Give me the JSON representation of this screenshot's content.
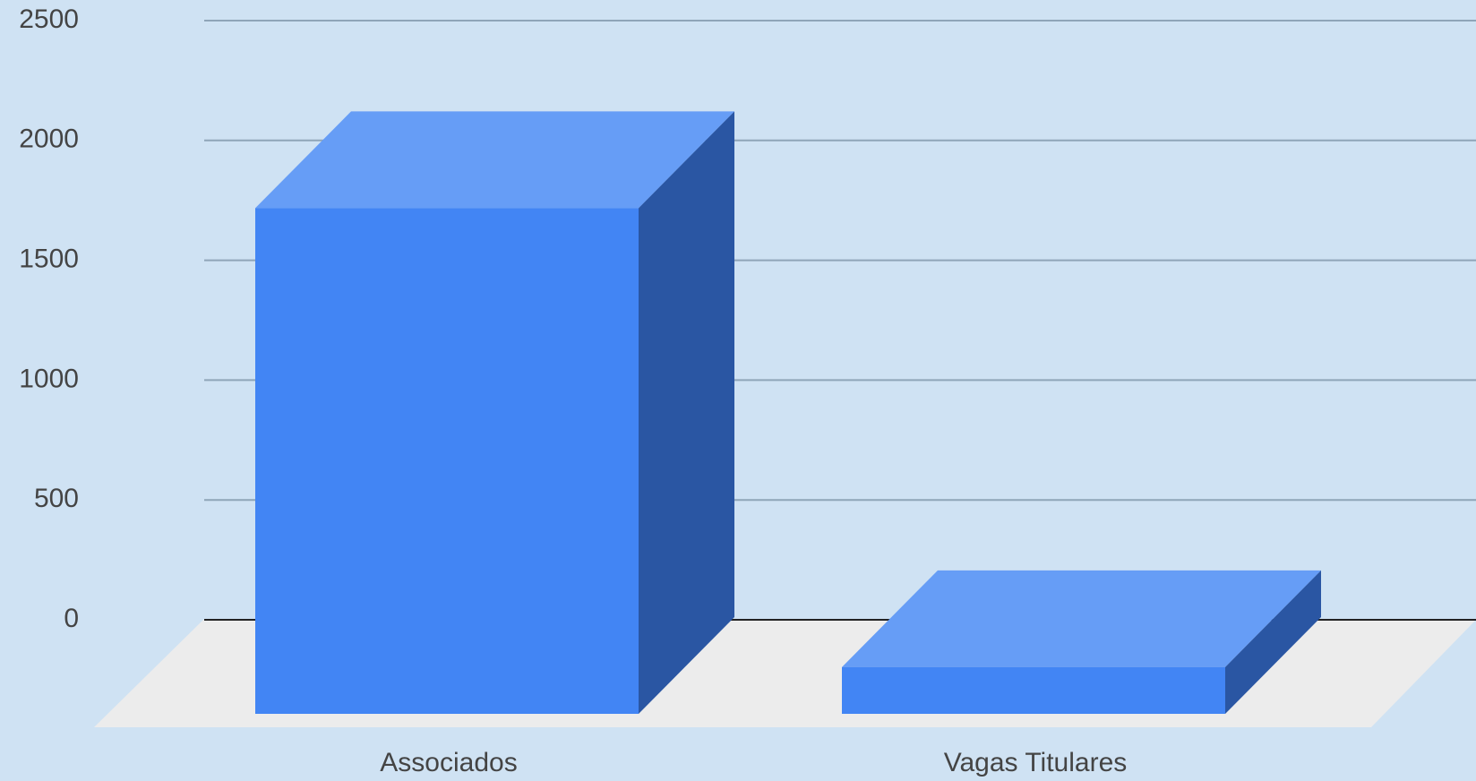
{
  "chart_data": {
    "type": "bar3d",
    "categories": [
      "Associados",
      "Vagas Titulares"
    ],
    "values": [
      2110,
      195
    ],
    "color": "#4285f4",
    "ylim": [
      0,
      2500
    ],
    "yticks": [
      0,
      500,
      1000,
      1500,
      2000,
      2500
    ],
    "grid": true
  }
}
